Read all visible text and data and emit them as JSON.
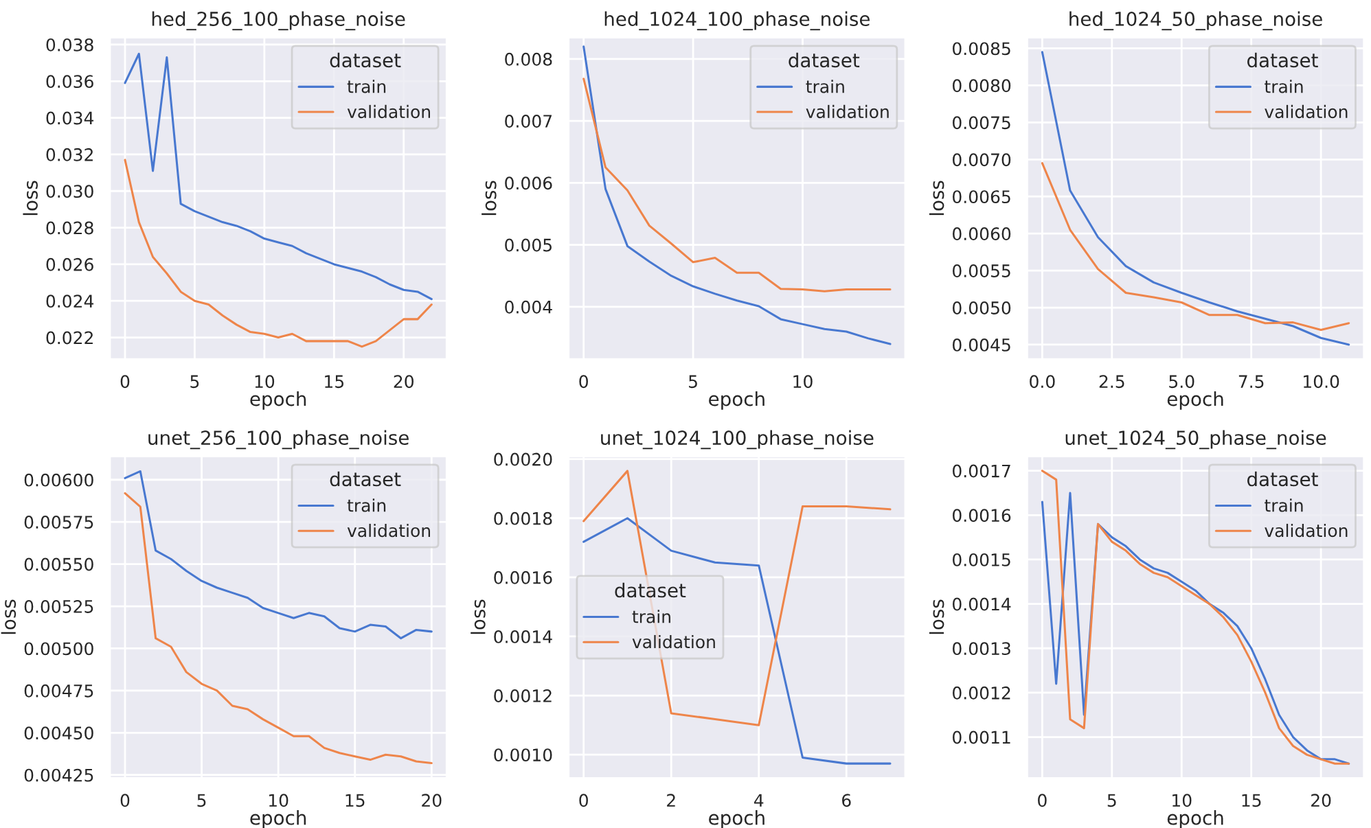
{
  "chart_data": [
    {
      "type": "line",
      "title": "hed_256_100_phase_noise",
      "xlabel": "epoch",
      "ylabel": "loss",
      "legend_title": "dataset",
      "legend": "top right",
      "grid": true,
      "x": [
        0,
        1,
        2,
        3,
        4,
        5,
        6,
        7,
        8,
        9,
        10,
        11,
        12,
        13,
        14,
        15,
        16,
        17,
        18,
        19,
        20,
        21,
        22
      ],
      "xlim": [
        -1.1,
        23.1
      ],
      "xticks": [
        0,
        5,
        10,
        15,
        20
      ],
      "ylim": [
        0.0208,
        0.0384
      ],
      "yticks": [
        0.022,
        0.024,
        0.026,
        0.028,
        {
          "value": 0.03,
          "label": "0.030"
        },
        0.032,
        0.034,
        0.036,
        0.038
      ],
      "series": [
        {
          "name": "train",
          "color": "#4878d0",
          "values": [
            0.0359,
            0.0375,
            0.0311,
            0.0373,
            0.0293,
            0.0289,
            0.0286,
            0.0283,
            0.0281,
            0.0278,
            0.0274,
            0.0272,
            0.027,
            0.0266,
            0.0263,
            0.026,
            0.0258,
            0.0256,
            0.0253,
            0.0249,
            0.0246,
            0.0245,
            0.0241
          ]
        },
        {
          "name": "validation",
          "color": "#ee854a",
          "values": [
            0.0317,
            0.0283,
            0.0264,
            0.0255,
            0.0245,
            0.024,
            0.0238,
            0.0232,
            0.0227,
            0.0223,
            0.0222,
            0.022,
            0.0222,
            0.0218,
            0.0218,
            0.0218,
            0.0218,
            0.0215,
            0.0218,
            0.0224,
            0.023,
            0.023,
            0.0238
          ]
        }
      ]
    },
    {
      "type": "line",
      "title": "hed_1024_100_phase_noise",
      "xlabel": "epoch",
      "ylabel": "loss",
      "legend_title": "dataset",
      "legend": "top right",
      "grid": true,
      "x": [
        0,
        1,
        2,
        3,
        4,
        5,
        6,
        7,
        8,
        9,
        10,
        11,
        12,
        13,
        14
      ],
      "xlim": [
        -0.7,
        14.7
      ],
      "xticks": [
        0,
        5,
        10
      ],
      "ylim": [
        0.00315,
        0.00835
      ],
      "yticks": [
        0.004,
        0.005,
        0.006,
        0.007,
        0.008
      ],
      "series": [
        {
          "name": "train",
          "color": "#4878d0",
          "values": [
            0.0082,
            0.0059,
            0.00498,
            0.00473,
            0.0045,
            0.00433,
            0.00421,
            0.0041,
            0.00401,
            0.0038,
            0.00372,
            0.00364,
            0.0036,
            0.00349,
            0.0034
          ]
        },
        {
          "name": "validation",
          "color": "#ee854a",
          "values": [
            0.00768,
            0.00625,
            0.00588,
            0.00531,
            0.00502,
            0.00472,
            0.00479,
            0.00455,
            0.00455,
            0.00429,
            0.00428,
            0.00425,
            0.00428,
            0.00428,
            0.00428
          ]
        }
      ]
    },
    {
      "type": "line",
      "title": "hed_1024_50_phase_noise",
      "xlabel": "epoch",
      "ylabel": "loss",
      "legend_title": "dataset",
      "legend": "top right",
      "grid": true,
      "x": [
        0,
        1,
        2,
        3,
        4,
        5,
        6,
        7,
        8,
        9,
        10,
        11
      ],
      "xlim": [
        -0.55,
        11.55
      ],
      "xticks": [
        {
          "value": 0,
          "label": "0.0"
        },
        2.5,
        {
          "value": 5,
          "label": "5.0"
        },
        7.5,
        {
          "value": 10,
          "label": "10.0"
        }
      ],
      "ylim": [
        0.0043,
        0.00865
      ],
      "yticks": [
        0.0045,
        {
          "value": 0.005,
          "label": "0.0050"
        },
        0.0055,
        {
          "value": 0.006,
          "label": "0.0060"
        },
        0.0065,
        {
          "value": 0.007,
          "label": "0.0070"
        },
        0.0075,
        {
          "value": 0.008,
          "label": "0.0080"
        },
        0.0085
      ],
      "series": [
        {
          "name": "train",
          "color": "#4878d0",
          "values": [
            0.00845,
            0.00658,
            0.00595,
            0.00556,
            0.00534,
            0.0052,
            0.00507,
            0.00495,
            0.00485,
            0.00475,
            0.00459,
            0.0045
          ]
        },
        {
          "name": "validation",
          "color": "#ee854a",
          "values": [
            0.00695,
            0.00605,
            0.00552,
            0.0052,
            0.00514,
            0.00507,
            0.0049,
            0.0049,
            0.00479,
            0.0048,
            0.0047,
            0.00479
          ]
        }
      ]
    },
    {
      "type": "line",
      "title": "unet_256_100_phase_noise",
      "xlabel": "epoch",
      "ylabel": "loss",
      "legend_title": "dataset",
      "legend": "top right",
      "grid": true,
      "x": [
        0,
        1,
        2,
        3,
        4,
        5,
        6,
        7,
        8,
        9,
        10,
        11,
        12,
        13,
        14,
        15,
        16,
        17,
        18,
        19,
        20
      ],
      "xlim": [
        -1,
        21
      ],
      "xticks": [
        0,
        5,
        10,
        15,
        20
      ],
      "ylim": [
        0.00423,
        0.00614
      ],
      "yticks": [
        0.00425,
        {
          "value": 0.0045,
          "label": "0.00450"
        },
        0.00475,
        {
          "value": 0.005,
          "label": "0.00500"
        },
        0.00525,
        {
          "value": 0.0055,
          "label": "0.00550"
        },
        0.00575,
        {
          "value": 0.006,
          "label": "0.00600"
        }
      ],
      "series": [
        {
          "name": "train",
          "color": "#4878d0",
          "values": [
            0.00601,
            0.00605,
            0.00558,
            0.00553,
            0.00546,
            0.0054,
            0.00536,
            0.00533,
            0.0053,
            0.00524,
            0.00521,
            0.00518,
            0.00521,
            0.00519,
            0.00512,
            0.0051,
            0.00514,
            0.00513,
            0.00506,
            0.00511,
            0.0051
          ]
        },
        {
          "name": "validation",
          "color": "#ee854a",
          "values": [
            0.00592,
            0.00584,
            0.00506,
            0.00501,
            0.00486,
            0.00479,
            0.00475,
            0.00466,
            0.00464,
            0.00458,
            0.00453,
            0.00448,
            0.00448,
            0.00441,
            0.00438,
            0.00436,
            0.00434,
            0.00437,
            0.00436,
            0.00433,
            0.00432
          ]
        }
      ]
    },
    {
      "type": "line",
      "title": "unet_1024_100_phase_noise",
      "xlabel": "epoch",
      "ylabel": "loss",
      "legend_title": "dataset",
      "legend": "center left",
      "grid": true,
      "x": [
        0,
        1,
        2,
        3,
        4,
        5,
        6,
        7
      ],
      "xlim": [
        -0.35,
        7.35
      ],
      "xticks": [
        0,
        2,
        4,
        6
      ],
      "ylim": [
        0.00092,
        0.00201
      ],
      "yticks": [
        {
          "value": 0.001,
          "label": "0.0010"
        },
        0.0012,
        0.0014,
        0.0016,
        0.0018,
        {
          "value": 0.002,
          "label": "0.0020"
        }
      ],
      "series": [
        {
          "name": "train",
          "color": "#4878d0",
          "values": [
            0.00172,
            0.0018,
            0.00169,
            0.00165,
            0.00164,
            0.00099,
            0.00097,
            0.00097
          ]
        },
        {
          "name": "validation",
          "color": "#ee854a",
          "values": [
            0.00179,
            0.00196,
            0.00114,
            0.00112,
            0.0011,
            0.00184,
            0.00184,
            0.00183
          ]
        }
      ]
    },
    {
      "type": "line",
      "title": "unet_1024_50_phase_noise",
      "xlabel": "epoch",
      "ylabel": "loss",
      "legend_title": "dataset",
      "legend": "top right",
      "grid": true,
      "x": [
        0,
        1,
        2,
        3,
        4,
        5,
        6,
        7,
        8,
        9,
        10,
        11,
        12,
        13,
        14,
        15,
        16,
        17,
        18,
        19,
        20,
        21,
        22
      ],
      "xlim": [
        -1.1,
        23.1
      ],
      "xticks": [
        0,
        5,
        10,
        15,
        20
      ],
      "ylim": [
        0.001007,
        0.001733
      ],
      "yticks": [
        0.0011,
        0.0012,
        0.0013,
        0.0014,
        0.0015,
        0.0016,
        0.0017
      ],
      "series": [
        {
          "name": "train",
          "color": "#4878d0",
          "values": [
            0.00163,
            0.00122,
            0.00165,
            0.00115,
            0.00158,
            0.00155,
            0.00153,
            0.0015,
            0.00148,
            0.00147,
            0.00145,
            0.00143,
            0.0014,
            0.00138,
            0.00135,
            0.0013,
            0.00123,
            0.00115,
            0.0011,
            0.00107,
            0.00105,
            0.00105,
            0.00104
          ]
        },
        {
          "name": "validation",
          "color": "#ee854a",
          "values": [
            0.0017,
            0.00168,
            0.00114,
            0.00112,
            0.00158,
            0.00154,
            0.00152,
            0.00149,
            0.00147,
            0.00146,
            0.00144,
            0.00142,
            0.0014,
            0.00137,
            0.00133,
            0.00127,
            0.0012,
            0.00112,
            0.00108,
            0.00106,
            0.00105,
            0.00104,
            0.00104
          ]
        }
      ]
    }
  ]
}
